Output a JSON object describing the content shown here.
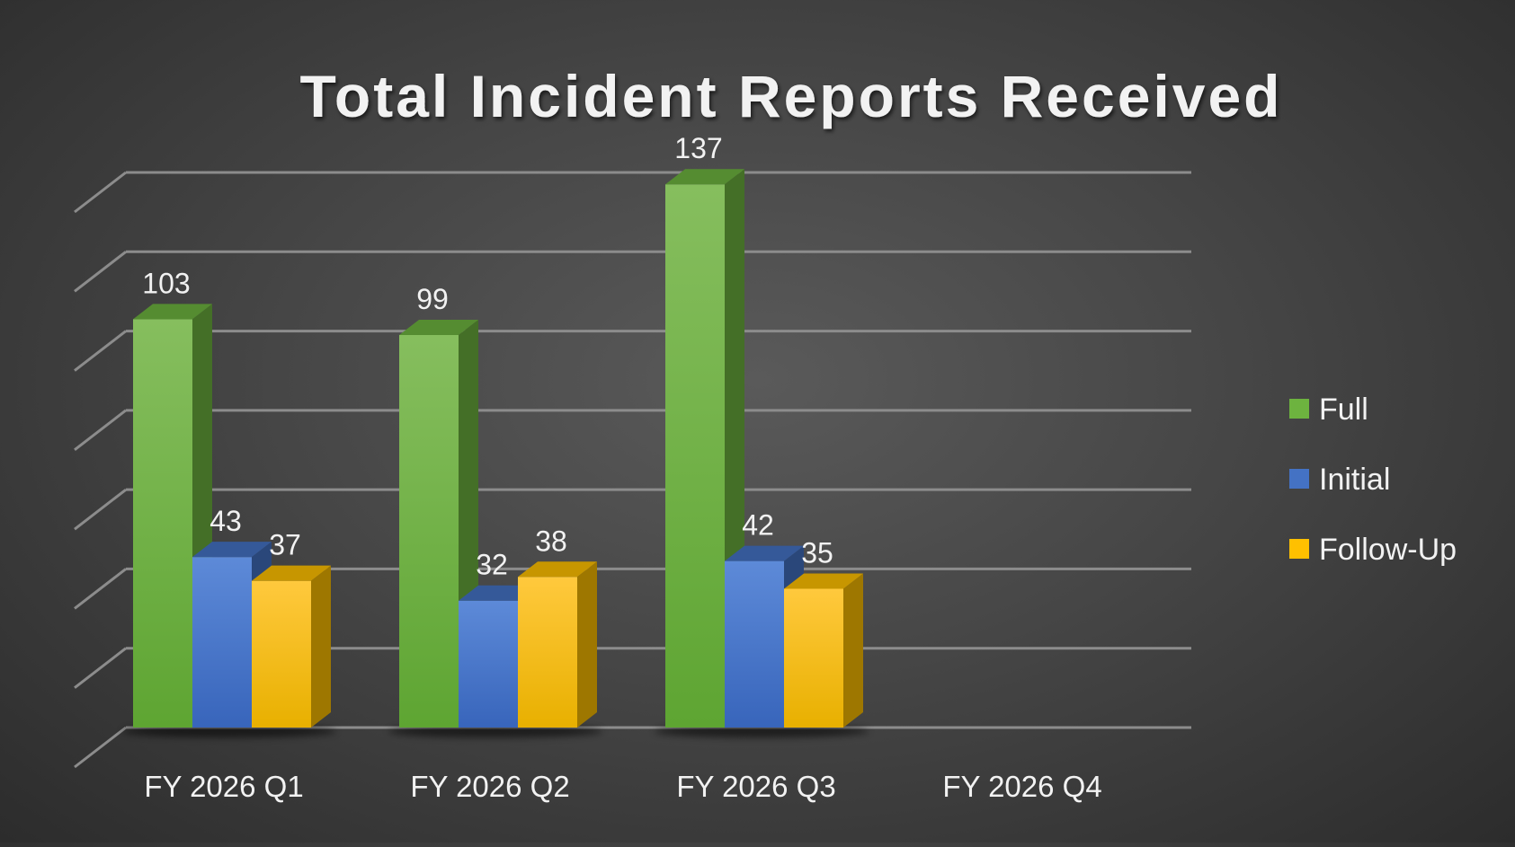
{
  "chart_data": {
    "type": "bar",
    "title": "Total Incident Reports Received",
    "categories": [
      "FY 2026 Q1",
      "FY 2026 Q2",
      "FY 2026 Q3",
      "FY 2026 Q4"
    ],
    "series": [
      {
        "name": "Full",
        "values": [
          103,
          99,
          137,
          null
        ]
      },
      {
        "name": "Initial",
        "values": [
          43,
          32,
          42,
          null
        ]
      },
      {
        "name": "Follow-Up",
        "values": [
          37,
          38,
          35,
          null
        ]
      }
    ],
    "ylim": [
      0,
      140
    ],
    "grid": true,
    "legend_position": "right",
    "data_labels": true,
    "colors": {
      "Full": "#6db33f",
      "Initial": "#4472c4",
      "Follow-Up": "#ffc000",
      "grid": "#8c8c8c",
      "text": "#f2f2f2"
    }
  }
}
